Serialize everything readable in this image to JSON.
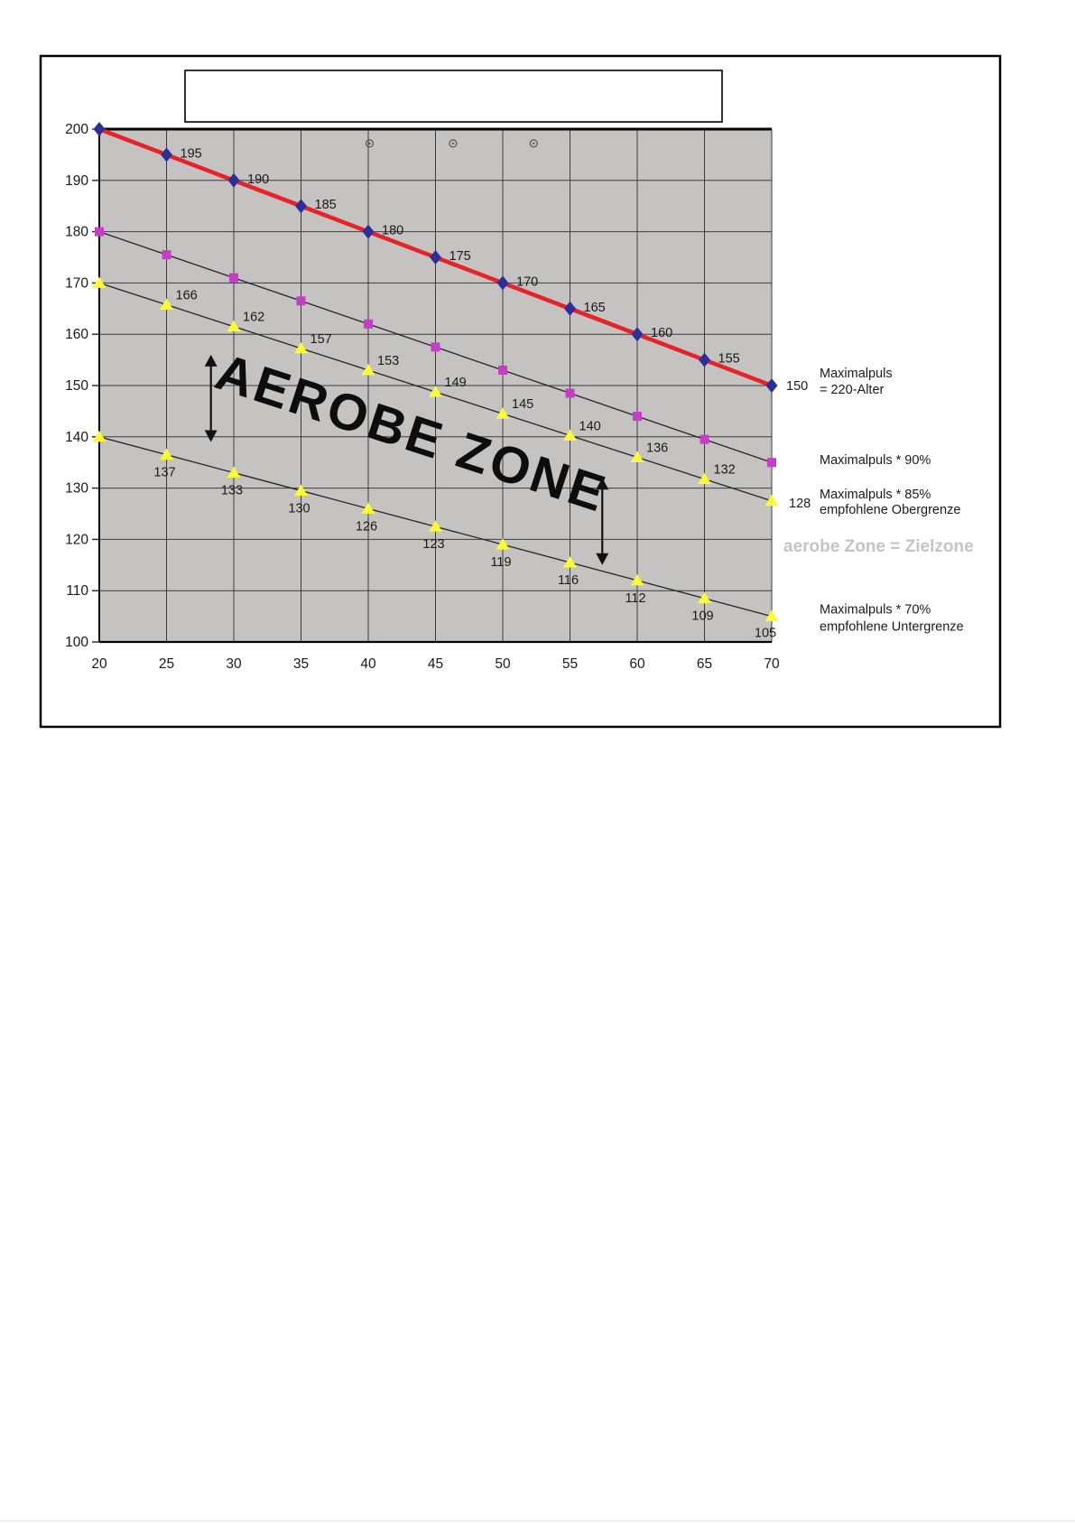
{
  "window": {
    "background": "#ffffff",
    "frame_color": "#000000"
  },
  "title_box": {
    "text": ""
  },
  "chart_data": {
    "type": "line",
    "title": "",
    "xlabel": "",
    "ylabel": "",
    "x": [
      20,
      25,
      30,
      35,
      40,
      45,
      50,
      55,
      60,
      65,
      70
    ],
    "x_ticks": [
      "20",
      "25",
      "30",
      "35",
      "40",
      "45",
      "50",
      "55",
      "60",
      "65",
      "70"
    ],
    "y_ticks": [
      "100",
      "110",
      "120",
      "130",
      "140",
      "150",
      "160",
      "170",
      "180",
      "190",
      "200"
    ],
    "xlim": [
      20,
      70
    ],
    "ylim": [
      100,
      200
    ],
    "grid": true,
    "plot_background": "#c4c3c1",
    "grid_color": "#3c3c3c",
    "legend_position": "right",
    "series": [
      {
        "name": "Maximalpuls = 220-Alter",
        "legend_lines": [
          "Maximalpuls",
          "= 220-Alter"
        ],
        "values": [
          200,
          195,
          190,
          185,
          180,
          175,
          170,
          165,
          160,
          155,
          150
        ],
        "point_labels": [
          "",
          "195",
          "190",
          "185",
          "180",
          "175",
          "170",
          "165",
          "160",
          "155",
          "150"
        ],
        "line_color": "#e62329",
        "line_width": 4.6,
        "marker": "diamond",
        "marker_color": "#2e2e99"
      },
      {
        "name": "Maximalpuls * 90%",
        "legend_lines": [
          "Maximalpuls * 90%"
        ],
        "values": [
          180,
          175.5,
          171,
          166.5,
          162,
          157.5,
          153,
          148.5,
          144,
          139.5,
          135
        ],
        "point_labels": [
          "",
          "",
          "",
          "",
          "",
          "",
          "",
          "",
          "",
          "",
          ""
        ],
        "line_color": "#252525",
        "line_width": 1.3,
        "marker": "square",
        "marker_color": "#c73cc7"
      },
      {
        "name": "Maximalpuls * 85% empfohlene Obergrenze",
        "legend_lines": [
          "Maximalpuls * 85%",
          "empfohlene Obergrenze"
        ],
        "values": [
          170,
          165.75,
          161.5,
          157.25,
          153,
          148.75,
          144.5,
          140.25,
          136,
          131.75,
          127.5
        ],
        "point_labels": [
          "",
          "166",
          "162",
          "157",
          "153",
          "149",
          "145",
          "140",
          "136",
          "132",
          "128"
        ],
        "line_color": "#252525",
        "line_width": 1.3,
        "marker": "triangle",
        "marker_color": "#fbfb33"
      },
      {
        "name": "Maximalpuls * 70% empfohlene Untergrenze",
        "legend_lines": [
          "Maximalpuls * 70%",
          "empfohlene Untergrenze"
        ],
        "values": [
          140,
          136.5,
          133,
          129.5,
          126,
          122.5,
          119,
          115.5,
          112,
          108.5,
          105
        ],
        "point_labels": [
          "",
          "137",
          "133",
          "130",
          "126",
          "123",
          "119",
          "116",
          "112",
          "109",
          "105"
        ],
        "line_color": "#252525",
        "line_width": 1.3,
        "marker": "triangle",
        "marker_color": "#fbfb33"
      }
    ],
    "annotations": {
      "zone_label": "AEROBE ZONE",
      "zone_note": "aerobe Zone = Zielzone",
      "zone_note_color": "#c4c4c4",
      "range_arrows": [
        {
          "age": 28.3,
          "pulse_top": 156,
          "pulse_bottom": 139
        },
        {
          "age": 57.4,
          "pulse_top": 132,
          "pulse_bottom": 115
        }
      ],
      "handle_marker_ages": [
        40.1,
        46.3,
        52.3
      ],
      "handle_marker_pulse": 197.2
    }
  }
}
